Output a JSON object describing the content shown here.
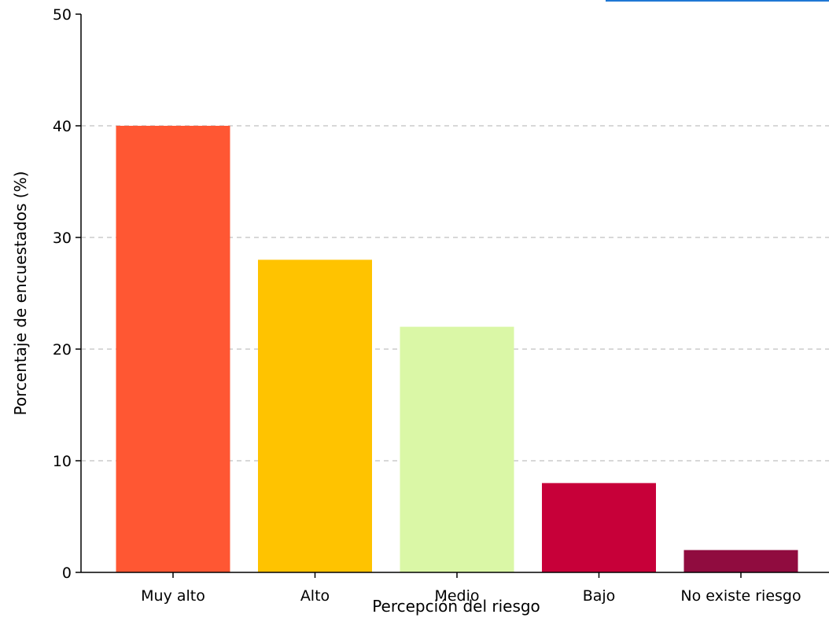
{
  "chart_data": {
    "type": "bar",
    "title": "",
    "xlabel": "Percepción del riesgo",
    "ylabel": "Porcentaje de encuestados (%)",
    "categories": [
      "Muy alto",
      "Alto",
      "Medio",
      "Bajo",
      "No existe riesgo"
    ],
    "values": [
      40,
      28,
      22,
      8,
      2
    ],
    "colors": [
      "#ff5733",
      "#ffc300",
      "#daf7a6",
      "#c70039",
      "#900c3f"
    ],
    "ylim": [
      0,
      50
    ],
    "yticks": [
      "0",
      "10",
      "20",
      "30",
      "40",
      "50"
    ],
    "grid": "y-dashed",
    "legend": "none"
  },
  "title_box": {
    "border_color": "#1f77d4"
  }
}
